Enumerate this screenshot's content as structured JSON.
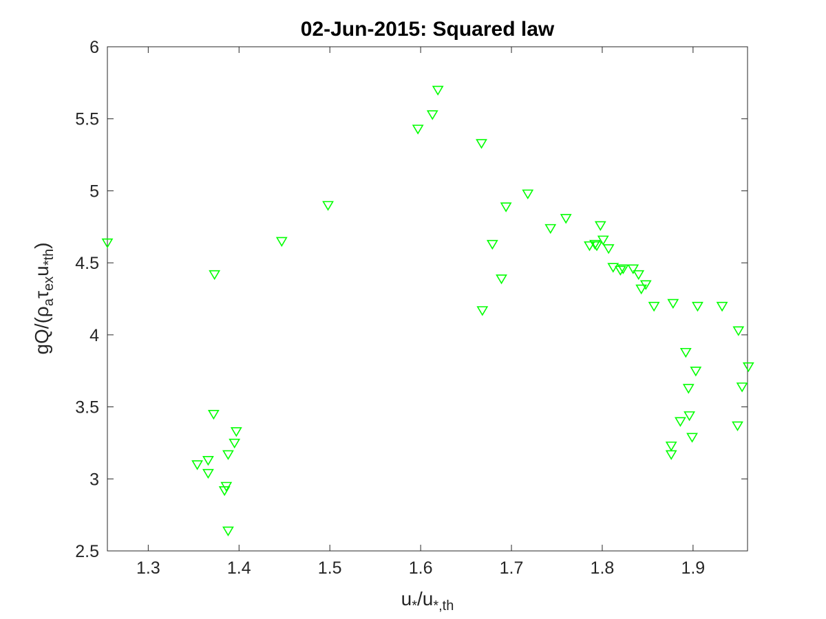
{
  "chart_data": {
    "type": "scatter",
    "title": "02-Jun-2015: Squared law",
    "xlabel": {
      "base1": "u",
      "sub1": "*",
      "sep": "/u",
      "sub2": "*,th"
    },
    "ylabel": {
      "prefix": "gQ/(",
      "rho": "ρ",
      "sub_a": "a",
      "tau": "τ",
      "sub_ex": "ex",
      "u": "u",
      "sub_th": "*th",
      "suffix": ")"
    },
    "xlim": [
      1.255,
      1.96
    ],
    "ylim": [
      2.5,
      6
    ],
    "xticks": [
      "1.3",
      "1.4",
      "1.5",
      "1.6",
      "1.7",
      "1.8",
      "1.9"
    ],
    "yticks": [
      "2.5",
      "3",
      "3.5",
      "4",
      "4.5",
      "5",
      "5.5",
      "6"
    ],
    "grid": false,
    "marker": "triangle-down",
    "series": [
      {
        "color": "#00ff00",
        "points": [
          [
            1.255,
            4.64
          ],
          [
            1.373,
            4.42
          ],
          [
            1.447,
            4.65
          ],
          [
            1.498,
            4.9
          ],
          [
            1.354,
            3.1
          ],
          [
            1.366,
            3.13
          ],
          [
            1.366,
            3.04
          ],
          [
            1.372,
            3.45
          ],
          [
            1.384,
            2.92
          ],
          [
            1.386,
            2.95
          ],
          [
            1.388,
            3.17
          ],
          [
            1.395,
            3.25
          ],
          [
            1.397,
            3.33
          ],
          [
            1.388,
            2.64
          ],
          [
            1.597,
            5.43
          ],
          [
            1.613,
            5.53
          ],
          [
            1.619,
            5.7
          ],
          [
            1.667,
            5.33
          ],
          [
            1.668,
            4.17
          ],
          [
            1.679,
            4.63
          ],
          [
            1.689,
            4.39
          ],
          [
            1.694,
            4.89
          ],
          [
            1.718,
            4.98
          ],
          [
            1.743,
            4.74
          ],
          [
            1.76,
            4.81
          ],
          [
            1.786,
            4.62
          ],
          [
            1.792,
            4.63
          ],
          [
            1.794,
            4.62
          ],
          [
            1.798,
            4.76
          ],
          [
            1.801,
            4.66
          ],
          [
            1.807,
            4.6
          ],
          [
            1.812,
            4.47
          ],
          [
            1.82,
            4.45
          ],
          [
            1.823,
            4.46
          ],
          [
            1.834,
            4.46
          ],
          [
            1.84,
            4.42
          ],
          [
            1.843,
            4.32
          ],
          [
            1.848,
            4.35
          ],
          [
            1.857,
            4.2
          ],
          [
            1.876,
            3.23
          ],
          [
            1.876,
            3.17
          ],
          [
            1.878,
            4.22
          ],
          [
            1.886,
            3.4
          ],
          [
            1.892,
            3.88
          ],
          [
            1.895,
            3.63
          ],
          [
            1.896,
            3.44
          ],
          [
            1.899,
            3.29
          ],
          [
            1.903,
            3.75
          ],
          [
            1.905,
            4.2
          ],
          [
            1.932,
            4.2
          ],
          [
            1.949,
            3.37
          ],
          [
            1.95,
            4.03
          ],
          [
            1.954,
            3.64
          ],
          [
            1.961,
            3.78
          ]
        ]
      }
    ]
  }
}
